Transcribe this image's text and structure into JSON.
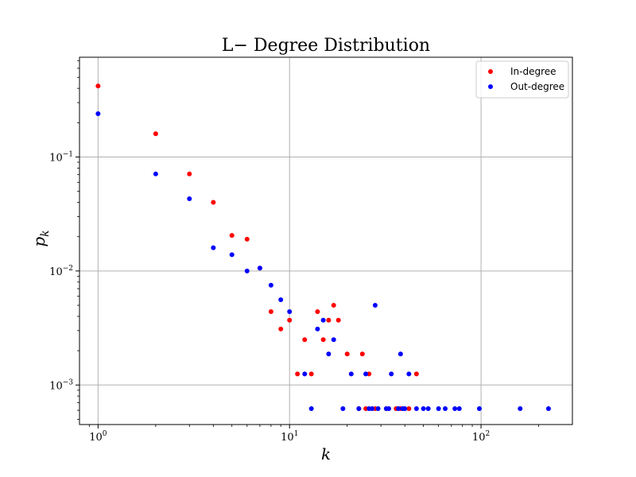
{
  "chart_data": {
    "type": "scatter",
    "title": "L− Degree Distribution",
    "xlabel": "k",
    "ylabel": "p_k",
    "xscale": "log",
    "yscale": "log",
    "xlim": [
      0.8,
      300
    ],
    "ylim": [
      0.00045,
      0.75
    ],
    "xticks": [
      {
        "value": 1,
        "base": "10",
        "exp": "0"
      },
      {
        "value": 10,
        "base": "10",
        "exp": "1"
      },
      {
        "value": 100,
        "base": "10",
        "exp": "2"
      }
    ],
    "yticks": [
      {
        "value": 0.001,
        "base": "10",
        "exp": "−3"
      },
      {
        "value": 0.01,
        "base": "10",
        "exp": "−2"
      },
      {
        "value": 0.1,
        "base": "10",
        "exp": "−1"
      }
    ],
    "grid": true,
    "legend_position": "top-right",
    "series": [
      {
        "name": "In-degree",
        "color": "#ff0000",
        "points": [
          [
            1,
            0.42
          ],
          [
            2,
            0.16
          ],
          [
            3,
            0.071
          ],
          [
            4,
            0.04
          ],
          [
            5,
            0.0205
          ],
          [
            6,
            0.019
          ],
          [
            7,
            0.0106
          ],
          [
            8,
            0.0044
          ],
          [
            9,
            0.0031
          ],
          [
            10,
            0.0037
          ],
          [
            11,
            0.00125
          ],
          [
            12,
            0.0025
          ],
          [
            13,
            0.00125
          ],
          [
            14,
            0.0044
          ],
          [
            15,
            0.0025
          ],
          [
            16,
            0.0037
          ],
          [
            17,
            0.005
          ],
          [
            18,
            0.0037
          ],
          [
            20,
            0.00187
          ],
          [
            23,
            0.00062
          ],
          [
            24,
            0.00187
          ],
          [
            25,
            0.00062
          ],
          [
            26,
            0.00125
          ],
          [
            28,
            0.00062
          ],
          [
            32,
            0.00062
          ],
          [
            36,
            0.00062
          ],
          [
            38,
            0.00062
          ],
          [
            42,
            0.00062
          ],
          [
            46,
            0.00125
          ]
        ]
      },
      {
        "name": "Out-degree",
        "color": "#0000ff",
        "points": [
          [
            1,
            0.24
          ],
          [
            2,
            0.071
          ],
          [
            3,
            0.043
          ],
          [
            4,
            0.016
          ],
          [
            5,
            0.0139
          ],
          [
            6,
            0.01
          ],
          [
            7,
            0.0106
          ],
          [
            8,
            0.0075
          ],
          [
            9,
            0.0056
          ],
          [
            10,
            0.0044
          ],
          [
            12,
            0.00125
          ],
          [
            13,
            0.00062
          ],
          [
            14,
            0.0031
          ],
          [
            15,
            0.0037
          ],
          [
            17,
            0.0025
          ],
          [
            16,
            0.00187
          ],
          [
            19,
            0.00062
          ],
          [
            21,
            0.00125
          ],
          [
            23,
            0.00062
          ],
          [
            25,
            0.00125
          ],
          [
            26,
            0.00062
          ],
          [
            27,
            0.00062
          ],
          [
            28,
            0.005
          ],
          [
            29,
            0.00062
          ],
          [
            32,
            0.00062
          ],
          [
            33,
            0.00062
          ],
          [
            34,
            0.00125
          ],
          [
            37,
            0.00062
          ],
          [
            38,
            0.00187
          ],
          [
            39,
            0.00062
          ],
          [
            40,
            0.00062
          ],
          [
            42,
            0.00125
          ],
          [
            46,
            0.00062
          ],
          [
            50,
            0.00062
          ],
          [
            53,
            0.00062
          ],
          [
            60,
            0.00062
          ],
          [
            65,
            0.00062
          ],
          [
            73,
            0.00062
          ],
          [
            77,
            0.00062
          ],
          [
            98,
            0.00062
          ],
          [
            160,
            0.00062
          ],
          [
            225,
            0.00062
          ]
        ]
      }
    ]
  }
}
